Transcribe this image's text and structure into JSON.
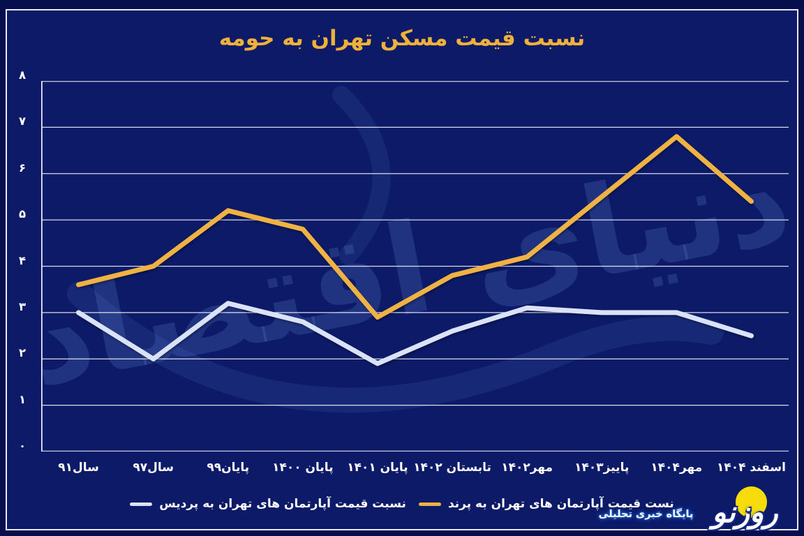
{
  "watermark": "دنیای اقتصاد",
  "chart_data": {
    "type": "line",
    "title": "نسبت قیمت مسکن تهران به حومه",
    "categories": [
      "سال۹۱",
      "سال۹۷",
      "پایان۹۹",
      "پایان ۱۴۰۰",
      "پایان ۱۴۰۱",
      "تابستان ۱۴۰۲",
      "مهر۱۴۰۲",
      "پاییز۱۴۰۳",
      "مهر۱۴۰۴",
      "اسفند ۱۴۰۴"
    ],
    "series": [
      {
        "name": "نست قیمت آپارتمان های تهران به پرند",
        "color": "#efb243",
        "values": [
          3.6,
          4.0,
          5.2,
          4.8,
          2.9,
          3.8,
          4.2,
          5.5,
          6.8,
          5.4
        ]
      },
      {
        "name": "نسبت قیمت آپارتمان های تهران به پردیس",
        "color": "#d9e2f6",
        "values": [
          3.0,
          2.0,
          3.2,
          2.8,
          1.9,
          2.6,
          3.1,
          3.0,
          3.0,
          2.5
        ]
      }
    ],
    "ylim": [
      0,
      8
    ],
    "ytick_labels": [
      "۰",
      "۱",
      "۲",
      "۳",
      "۴",
      "۵",
      "۶",
      "۷",
      "۸"
    ],
    "grid": true,
    "legend_position": "bottom"
  },
  "footer": {
    "brand": "روزنو",
    "tagline": "پایگاه خبری تحلیلی"
  },
  "colors": {
    "background": "#0c1a68",
    "frame_border": "#e7eaf3",
    "title": "#f0b13a",
    "axis_text": "#ffffff",
    "gridline": "rgba(255,255,255,0.85)",
    "watermark": "rgba(88,122,198,0.27)",
    "logo_sun": "#f6dc0a"
  }
}
